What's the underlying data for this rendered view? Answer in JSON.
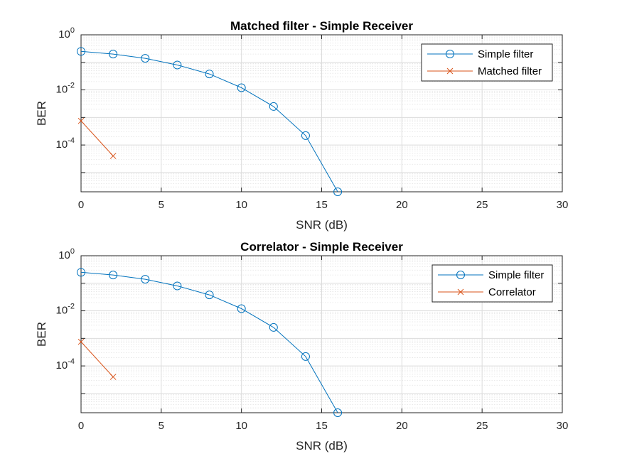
{
  "chart_data": [
    {
      "type": "line",
      "title": "Matched filter - Simple Receiver",
      "xlabel": "SNR (dB)",
      "ylabel": "BER",
      "xlim": [
        0,
        30
      ],
      "ylim": [
        2e-06,
        1
      ],
      "yscale": "log",
      "xticks": [
        "0",
        "5",
        "10",
        "15",
        "20",
        "25",
        "30"
      ],
      "yticks": [
        {
          "base": "10",
          "exp": "0"
        },
        {
          "base": "10",
          "exp": "-2"
        },
        {
          "base": "10",
          "exp": "-4"
        }
      ],
      "grid": true,
      "legend_position": "top-right",
      "series": [
        {
          "name": "Simple filter",
          "color": "#0072BD",
          "marker": "circle",
          "x": [
            0,
            2,
            4,
            6,
            8,
            10,
            12,
            14,
            16
          ],
          "y": [
            0.25,
            0.2,
            0.14,
            0.08,
            0.038,
            0.012,
            0.0025,
            0.00022,
            2e-06
          ]
        },
        {
          "name": "Matched filter",
          "color": "#D95319",
          "marker": "x",
          "x": [
            0,
            2
          ],
          "y": [
            0.00075,
            4e-05
          ]
        }
      ]
    },
    {
      "type": "line",
      "title": "Correlator - Simple Receiver",
      "xlabel": "SNR (dB)",
      "ylabel": "BER",
      "xlim": [
        0,
        30
      ],
      "ylim": [
        2e-06,
        1
      ],
      "yscale": "log",
      "xticks": [
        "0",
        "5",
        "10",
        "15",
        "20",
        "25",
        "30"
      ],
      "yticks": [
        {
          "base": "10",
          "exp": "0"
        },
        {
          "base": "10",
          "exp": "-2"
        },
        {
          "base": "10",
          "exp": "-4"
        }
      ],
      "grid": true,
      "legend_position": "top-right",
      "series": [
        {
          "name": "Simple filter",
          "color": "#0072BD",
          "marker": "circle",
          "x": [
            0,
            2,
            4,
            6,
            8,
            10,
            12,
            14,
            16
          ],
          "y": [
            0.25,
            0.2,
            0.14,
            0.08,
            0.038,
            0.012,
            0.0025,
            0.00022,
            2e-06
          ]
        },
        {
          "name": "Correlator",
          "color": "#D95319",
          "marker": "x",
          "x": [
            0,
            2
          ],
          "y": [
            0.00075,
            4e-05
          ]
        }
      ]
    }
  ]
}
